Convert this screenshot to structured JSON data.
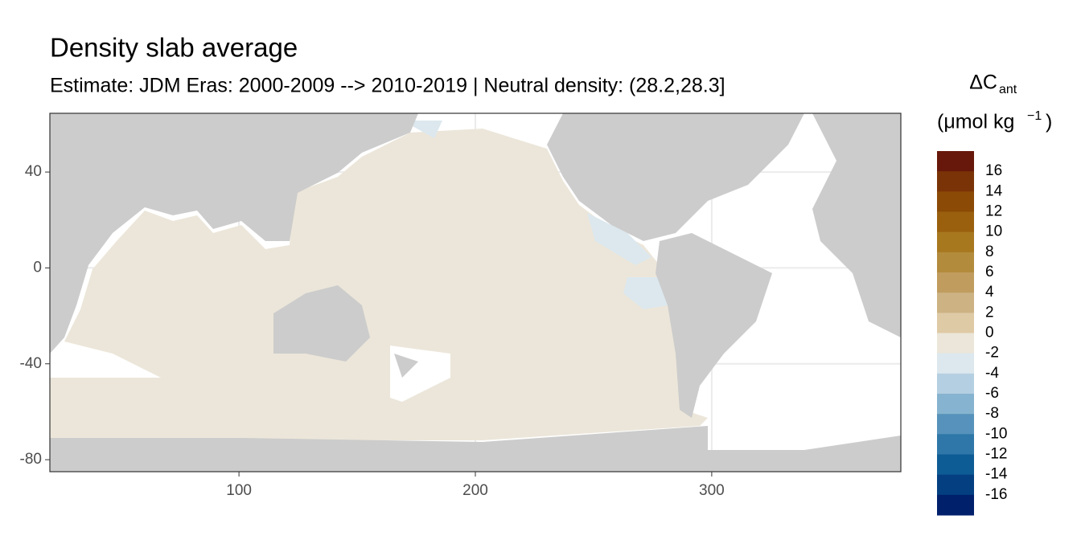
{
  "chart_data": {
    "type": "map",
    "title": "Density slab average",
    "subtitle": "Estimate: JDM Eras: 2000-2009 --> 2010-2019 | Neutral density: (28.2,28.3]",
    "xlim": [
      20,
      380
    ],
    "xticks": [
      100,
      200,
      300
    ],
    "ylim": [
      -85,
      64.5
    ],
    "yticks": [
      40,
      0,
      -40,
      -80
    ],
    "grid": true,
    "legend": {
      "symbol": "ΔC",
      "subscript": "ant",
      "unit_open": "(μmol kg",
      "superscript": "−1",
      "unit_close": ")",
      "limits": [
        -18,
        18
      ],
      "breaks": [
        16,
        14,
        12,
        10,
        8,
        6,
        4,
        2,
        0,
        -2,
        -4,
        -6,
        -8,
        -10,
        -12,
        -14,
        -16
      ],
      "colors": [
        "#67180a",
        "#7a3306",
        "#8b4a06",
        "#9a600e",
        "#a8781f",
        "#b38b3c",
        "#c09c5e",
        "#cdb283",
        "#dfcaa6",
        "#ece6da",
        "#dce8ee",
        "#b4cfe1",
        "#86b3cf",
        "#5692bb",
        "#2e77a8",
        "#0e5c95",
        "#033f81",
        "#00206c"
      ]
    }
  }
}
